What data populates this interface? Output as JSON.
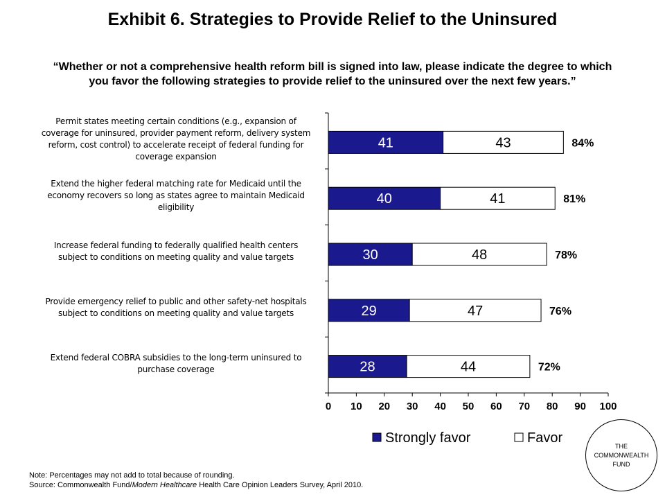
{
  "title": "Exhibit 6. Strategies to Provide Relief to the Uninsured",
  "question": {
    "line1": "“Whether or not a comprehensive health reform bill is signed into law, please indicate the degree to which",
    "line2": "you favor the following strategies to provide relief to the uninsured over the next few years.”"
  },
  "chart_data": {
    "type": "bar",
    "orientation": "horizontal",
    "stacked": true,
    "categories": [
      [
        "Permit states meeting certain conditions (e.g., expansion of",
        "coverage for uninsured, provider payment reform, delivery system",
        "reform, cost control) to accelerate receipt of federal funding for",
        "coverage expansion"
      ],
      [
        "Extend the higher federal matching rate for Medicaid until the",
        "economy recovers so long as states agree to maintain Medicaid",
        "eligibility"
      ],
      [
        "Increase federal funding to federally qualified health centers",
        "subject to conditions on meeting quality and value targets"
      ],
      [
        "Provide emergency relief to public and other safety-net hospitals",
        "subject to conditions on meeting quality and value targets"
      ],
      [
        "Extend federal COBRA subsidies to the long-term uninsured to",
        "purchase coverage"
      ]
    ],
    "series": [
      {
        "name": "Strongly favor",
        "values": [
          41,
          40,
          30,
          29,
          28
        ],
        "color": "#1a1a8e"
      },
      {
        "name": "Favor",
        "values": [
          43,
          41,
          48,
          47,
          44
        ],
        "color": "#ffffff"
      }
    ],
    "totals": [
      "84%",
      "81%",
      "78%",
      "76%",
      "72%"
    ],
    "xlim": [
      0,
      100
    ],
    "xticks": [
      0,
      10,
      20,
      30,
      40,
      50,
      60,
      70,
      80,
      90,
      100
    ],
    "legend_position": "bottom-right"
  },
  "note": {
    "line1": "Note: Percentages may not add to total because of rounding.",
    "source_prefix": "Source: Commonwealth Fund/",
    "source_italic": "Modern Healthcare",
    "source_suffix": " Health Care Opinion Leaders Survey, April 2010."
  },
  "logo": {
    "line1": "THE",
    "line2": "COMMONWEALTH",
    "line3": "FUND"
  }
}
